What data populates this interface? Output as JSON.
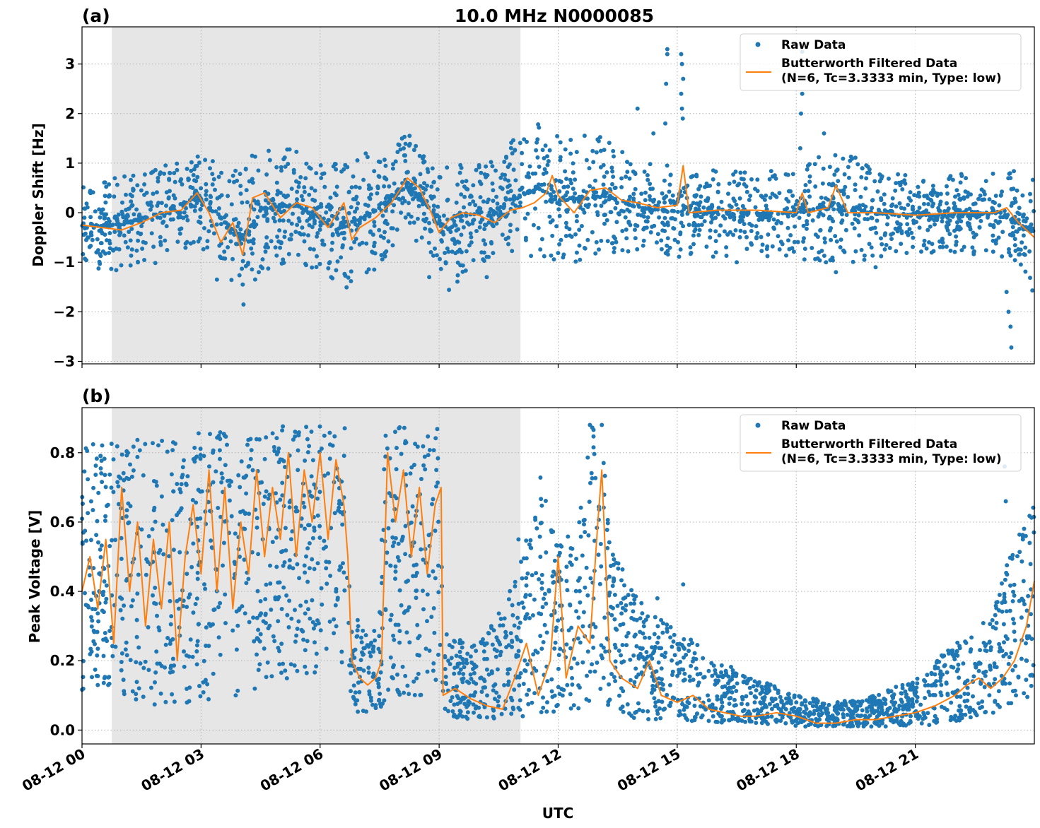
{
  "figure": {
    "xlabel": "UTC",
    "x_tick_labels": [
      "08-12 00",
      "08-12 03",
      "08-12 06",
      "08-12 09",
      "08-12 12",
      "08-12 15",
      "08-12 18",
      "08-12 21"
    ],
    "x_tick_hours": [
      0,
      3,
      6,
      9,
      12,
      15,
      18,
      21
    ],
    "shaded_region_hours": [
      0.75,
      11.05
    ],
    "shaded_color": "#e6e6e6"
  },
  "legend": {
    "raw_label": "Raw Data",
    "filtered_label_line1": "Butterworth Filtered Data",
    "filtered_label_line2": "(N=6, Tc=3.3333 min, Type: low)",
    "raw_color": "#1f77b4",
    "filtered_color": "#ff7f0e"
  },
  "chart_data": [
    {
      "type": "scatter",
      "panel_label": "(a)",
      "title": "10.0 MHz N0000085",
      "ylabel": "Doppler Shift [Hz]",
      "xlim_hours": [
        0,
        24
      ],
      "ylim": [
        -3.05,
        3.75
      ],
      "y_ticks": [
        3,
        2,
        1,
        0,
        -1,
        -2,
        -3
      ],
      "y_tick_labels": [
        "3",
        "2",
        "1",
        "0",
        "−1",
        "−2",
        "−3"
      ],
      "grid": true,
      "legend_position": "top-right",
      "series": [
        {
          "name": "Raw Data",
          "style": "points",
          "band_hours": [
            0,
            1,
            2,
            2.9,
            3.5,
            4.0,
            4.6,
            5.4,
            6.0,
            6.8,
            7.6,
            8.2,
            8.8,
            9.2,
            9.8,
            10.5,
            11.0,
            11.5,
            12.0,
            12.8,
            13.2,
            14.0,
            15.0,
            16.0,
            17.0,
            18.0,
            19.0,
            20.0,
            21.0,
            22.0,
            23.0,
            23.5,
            24.0
          ],
          "band_low": [
            -0.8,
            -0.75,
            -0.55,
            -0.2,
            -0.7,
            -1.35,
            -0.6,
            -0.5,
            -0.7,
            -1.0,
            -0.5,
            0.0,
            -0.5,
            -1.1,
            -0.6,
            -0.5,
            -0.4,
            -0.3,
            -0.5,
            -0.4,
            -0.3,
            -0.4,
            -0.5,
            -0.5,
            -0.5,
            -0.5,
            -0.6,
            -0.5,
            -0.5,
            -0.5,
            -0.5,
            -0.7,
            -1.1
          ],
          "band_high": [
            0.2,
            0.3,
            0.55,
            0.8,
            0.5,
            0.3,
            0.8,
            0.8,
            0.5,
            0.5,
            0.8,
            1.15,
            0.6,
            0.4,
            0.5,
            0.7,
            1.1,
            1.3,
            1.0,
            1.0,
            1.0,
            0.6,
            0.55,
            0.5,
            0.45,
            0.5,
            0.9,
            0.45,
            0.4,
            0.4,
            0.5,
            0.4,
            0.2
          ],
          "outliers": [
            {
              "x": 3.4,
              "y": -1.35
            },
            {
              "x": 4.05,
              "y": -1.45
            },
            {
              "x": 8.75,
              "y": -1.3
            },
            {
              "x": 10.2,
              "y": -1.3
            },
            {
              "x": 14.0,
              "y": 2.1
            },
            {
              "x": 14.4,
              "y": 1.6
            },
            {
              "x": 14.75,
              "y": 3.3
            },
            {
              "x": 14.75,
              "y": 3.2
            },
            {
              "x": 14.72,
              "y": 2.6
            },
            {
              "x": 14.7,
              "y": 1.8
            },
            {
              "x": 15.1,
              "y": 3.2
            },
            {
              "x": 15.12,
              "y": 3.0
            },
            {
              "x": 15.15,
              "y": 2.7
            },
            {
              "x": 15.1,
              "y": 2.4
            },
            {
              "x": 15.12,
              "y": 2.1
            },
            {
              "x": 15.14,
              "y": 1.9
            },
            {
              "x": 18.15,
              "y": 3.25
            },
            {
              "x": 18.15,
              "y": 2.4
            },
            {
              "x": 18.12,
              "y": 2.0
            },
            {
              "x": 18.1,
              "y": 1.3
            },
            {
              "x": 18.7,
              "y": 1.6
            },
            {
              "x": 23.3,
              "y": -1.6
            },
            {
              "x": 23.35,
              "y": -2.0
            },
            {
              "x": 23.4,
              "y": -2.3
            },
            {
              "x": 23.42,
              "y": -2.72
            },
            {
              "x": 16.5,
              "y": -1.0
            },
            {
              "x": 19.0,
              "y": -1.2
            },
            {
              "x": 20.0,
              "y": -1.1
            }
          ]
        },
        {
          "name": "Butterworth Filtered Data",
          "style": "line",
          "x": [
            0,
            0.5,
            1.0,
            1.5,
            2.0,
            2.5,
            2.9,
            3.2,
            3.5,
            3.8,
            4.05,
            4.3,
            4.6,
            5.0,
            5.4,
            5.8,
            6.2,
            6.6,
            6.8,
            7.0,
            7.4,
            7.8,
            8.2,
            8.5,
            8.8,
            9.0,
            9.3,
            9.6,
            10.0,
            10.4,
            10.8,
            11.1,
            11.4,
            11.7,
            11.85,
            12.0,
            12.4,
            12.8,
            13.2,
            13.6,
            14.0,
            14.5,
            15.0,
            15.15,
            15.3,
            16.0,
            17.0,
            18.0,
            18.15,
            18.3,
            18.8,
            19.0,
            19.3,
            20.0,
            21.0,
            22.0,
            23.0,
            23.3,
            23.6,
            24.0
          ],
          "y": [
            -0.25,
            -0.3,
            -0.35,
            -0.2,
            0.0,
            0.05,
            0.4,
            0.0,
            -0.6,
            -0.2,
            -0.85,
            0.3,
            0.4,
            -0.1,
            0.2,
            0.1,
            -0.3,
            0.2,
            -0.55,
            -0.3,
            -0.1,
            0.2,
            0.7,
            0.5,
            0.0,
            -0.4,
            -0.1,
            0.0,
            -0.05,
            -0.2,
            0.05,
            0.1,
            0.2,
            0.4,
            0.75,
            0.35,
            0.0,
            0.45,
            0.5,
            0.25,
            0.2,
            0.1,
            0.15,
            0.95,
            0.0,
            0.05,
            0.05,
            0.0,
            0.4,
            0.0,
            0.1,
            0.55,
            0.0,
            0.0,
            -0.05,
            0.0,
            0.0,
            0.1,
            -0.2,
            -0.5
          ]
        }
      ]
    },
    {
      "type": "scatter",
      "panel_label": "(b)",
      "ylabel": "Peak Voltage [V]",
      "xlim_hours": [
        0,
        24
      ],
      "ylim": [
        -0.04,
        0.93
      ],
      "y_ticks": [
        0.8,
        0.6,
        0.4,
        0.2,
        0.0
      ],
      "y_tick_labels": [
        "0.8",
        "0.6",
        "0.4",
        "0.2",
        "0.0"
      ],
      "grid": true,
      "legend_position": "top-right",
      "series": [
        {
          "name": "Raw Data",
          "style": "points",
          "band_hours": [
            0,
            0.75,
            2.5,
            2.9,
            4.0,
            5.5,
            6.7,
            6.75,
            7.5,
            7.6,
            7.65,
            8.5,
            9.05,
            9.1,
            10.0,
            11.0,
            11.5,
            12.0,
            12.5,
            12.8,
            13.1,
            13.3,
            14.0,
            15.0,
            16.0,
            17.0,
            18.0,
            19.0,
            20.0,
            21.0,
            22.0,
            22.5,
            23.0,
            23.5,
            24.0
          ],
          "band_low": [
            0.1,
            0.1,
            0.05,
            0.08,
            0.1,
            0.15,
            0.2,
            0.05,
            0.05,
            0.05,
            0.1,
            0.1,
            0.1,
            0.04,
            0.02,
            0.03,
            0.04,
            0.05,
            0.05,
            0.05,
            0.1,
            0.05,
            0.03,
            0.03,
            0.02,
            0.02,
            0.01,
            0.01,
            0.01,
            0.01,
            0.02,
            0.04,
            0.05,
            0.08,
            0.1
          ],
          "band_high": [
            0.82,
            0.85,
            0.84,
            0.86,
            0.87,
            0.88,
            0.88,
            0.33,
            0.3,
            0.85,
            0.88,
            0.88,
            0.87,
            0.28,
            0.25,
            0.45,
            0.75,
            0.55,
            0.6,
            0.88,
            0.85,
            0.6,
            0.38,
            0.3,
            0.2,
            0.15,
            0.1,
            0.08,
            0.1,
            0.15,
            0.25,
            0.28,
            0.35,
            0.6,
            0.65
          ],
          "outliers": [
            {
              "x": 13.1,
              "y": 0.88
            },
            {
              "x": 12.8,
              "y": 0.88
            },
            {
              "x": 23.25,
              "y": 0.76
            },
            {
              "x": 23.28,
              "y": 0.66
            },
            {
              "x": 15.15,
              "y": 0.42
            },
            {
              "x": 14.5,
              "y": 0.38
            },
            {
              "x": 11.0,
              "y": 0.55
            },
            {
              "x": 7.5,
              "y": 0.34
            }
          ]
        },
        {
          "name": "Butterworth Filtered Data",
          "style": "line",
          "x": [
            0,
            0.2,
            0.4,
            0.6,
            0.8,
            1.0,
            1.2,
            1.4,
            1.6,
            1.8,
            2.0,
            2.2,
            2.4,
            2.6,
            2.8,
            3.0,
            3.2,
            3.4,
            3.6,
            3.8,
            4.0,
            4.2,
            4.4,
            4.6,
            4.8,
            5.0,
            5.2,
            5.4,
            5.6,
            5.8,
            6.0,
            6.2,
            6.4,
            6.6,
            6.7,
            6.8,
            7.0,
            7.2,
            7.4,
            7.55,
            7.7,
            7.9,
            8.1,
            8.3,
            8.5,
            8.7,
            8.9,
            9.05,
            9.1,
            9.4,
            9.8,
            10.2,
            10.6,
            10.9,
            11.2,
            11.5,
            11.8,
            12.0,
            12.2,
            12.5,
            12.8,
            13.0,
            13.1,
            13.3,
            13.6,
            14.0,
            14.3,
            14.6,
            15.0,
            15.4,
            15.8,
            16.2,
            16.6,
            17.0,
            17.5,
            18.0,
            18.5,
            19.0,
            19.5,
            20.0,
            20.5,
            21.0,
            21.5,
            22.0,
            22.3,
            22.6,
            22.9,
            23.2,
            23.5,
            23.8,
            24.0
          ],
          "y": [
            0.4,
            0.5,
            0.35,
            0.55,
            0.25,
            0.7,
            0.4,
            0.6,
            0.3,
            0.55,
            0.35,
            0.6,
            0.2,
            0.5,
            0.65,
            0.45,
            0.75,
            0.4,
            0.7,
            0.35,
            0.6,
            0.45,
            0.75,
            0.5,
            0.7,
            0.55,
            0.8,
            0.5,
            0.75,
            0.6,
            0.8,
            0.55,
            0.78,
            0.65,
            0.5,
            0.2,
            0.15,
            0.13,
            0.15,
            0.2,
            0.8,
            0.6,
            0.75,
            0.5,
            0.7,
            0.45,
            0.65,
            0.7,
            0.1,
            0.12,
            0.09,
            0.07,
            0.06,
            0.15,
            0.25,
            0.1,
            0.2,
            0.5,
            0.15,
            0.3,
            0.25,
            0.6,
            0.75,
            0.2,
            0.15,
            0.12,
            0.2,
            0.1,
            0.08,
            0.1,
            0.06,
            0.05,
            0.04,
            0.04,
            0.05,
            0.04,
            0.02,
            0.02,
            0.03,
            0.03,
            0.04,
            0.05,
            0.07,
            0.1,
            0.13,
            0.15,
            0.12,
            0.15,
            0.2,
            0.3,
            0.43
          ]
        }
      ]
    }
  ]
}
